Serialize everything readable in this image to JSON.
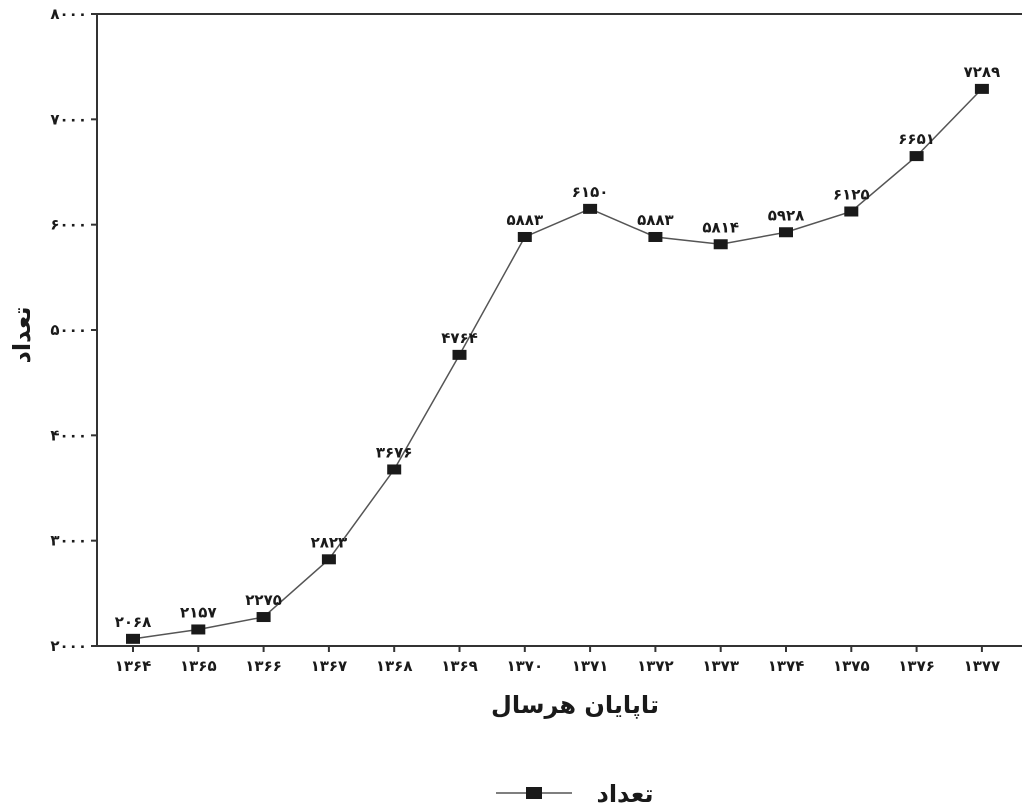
{
  "chart_data": {
    "type": "line",
    "title": "",
    "xlabel": "تاپایان هرسال",
    "ylabel": "تعداد",
    "categories": [
      "۱۳۶۴",
      "۱۳۶۵",
      "۱۳۶۶",
      "۱۳۶۷",
      "۱۳۶۸",
      "۱۳۶۹",
      "۱۳۷۰",
      "۱۳۷۱",
      "۱۳۷۲",
      "۱۳۷۳",
      "۱۳۷۴",
      "۱۳۷۵",
      "۱۳۷۶",
      "۱۳۷۷"
    ],
    "series": [
      {
        "name": "تعداد",
        "values": [
          2068,
          2157,
          2275,
          2823,
          3676,
          4764,
          5883,
          6150,
          5883,
          5814,
          5928,
          6125,
          6651,
          7289
        ],
        "data_labels": [
          "۲۰۶۸",
          "۲۱۵۷",
          "۲۲۷۵",
          "۲۸۲۳",
          "۳۶۷۶",
          "۴۷۶۴",
          "۵۸۸۳",
          "۶۱۵۰",
          "۵۸۸۳",
          "۵۸۱۴",
          "۵۹۲۸",
          "۶۱۲۵",
          "۶۶۵۱",
          "۷۲۸۹"
        ],
        "color": "#555555",
        "marker_color": "#1a1a1a"
      }
    ],
    "ylim": [
      2000,
      8000
    ],
    "yticks": [
      2000,
      3000,
      4000,
      5000,
      6000,
      7000,
      8000
    ],
    "ytick_labels": [
      "۲۰۰۰",
      "۳۰۰۰",
      "۴۰۰۰",
      "۵۰۰۰",
      "۶۰۰۰",
      "۷۰۰۰",
      "۸۰۰۰"
    ],
    "grid": false,
    "legend": {
      "position": "bottom-center",
      "label": "تعداد"
    }
  }
}
